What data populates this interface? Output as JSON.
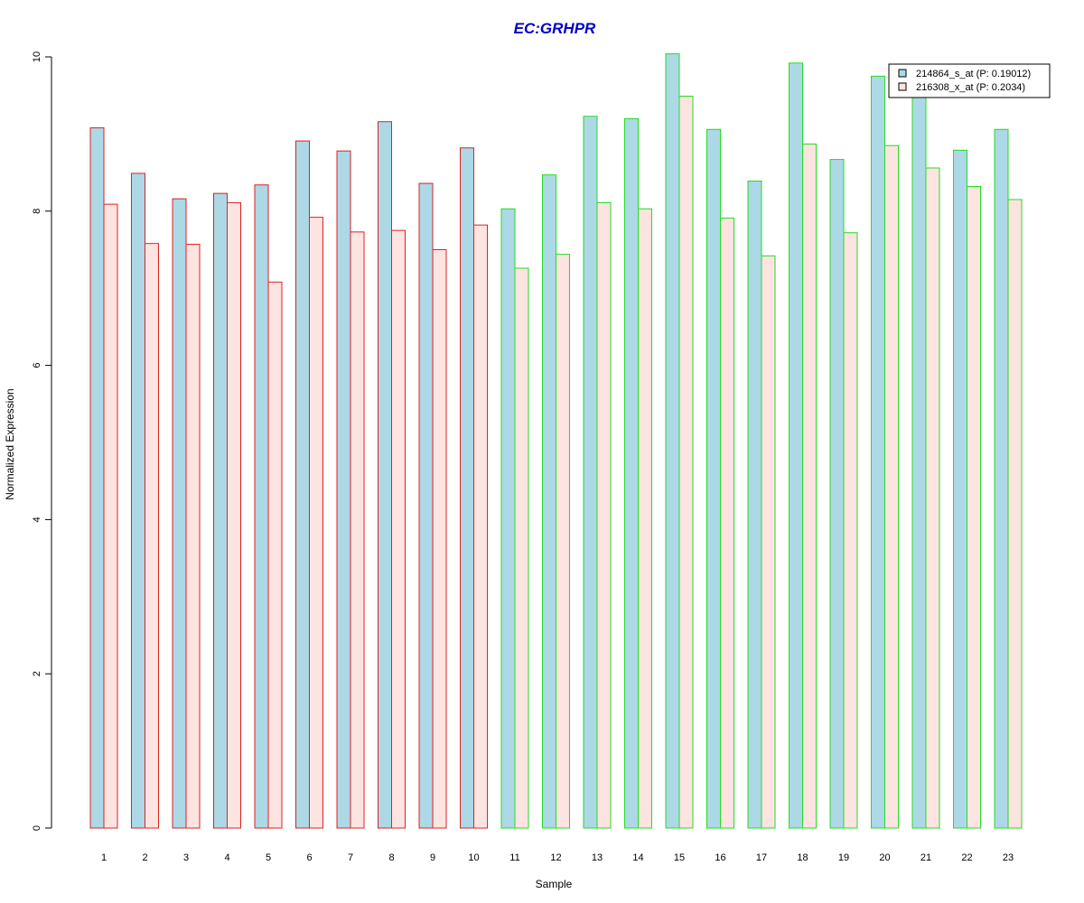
{
  "chart_data": {
    "type": "bar",
    "title": "EC:GRHPR",
    "xlabel": "Sample",
    "ylabel": "Normalized Expression",
    "ylim": [
      0,
      10
    ],
    "yticks": [
      "0",
      "2",
      "4",
      "6",
      "8",
      "10"
    ],
    "categories": [
      "1",
      "2",
      "3",
      "4",
      "5",
      "6",
      "7",
      "8",
      "9",
      "10",
      "11",
      "12",
      "13",
      "14",
      "15",
      "16",
      "17",
      "18",
      "19",
      "20",
      "21",
      "22",
      "23"
    ],
    "series": [
      {
        "name": "214864_s_at (P: 0.19012)",
        "fill": "#add8e6",
        "values": [
          9.08,
          8.49,
          8.16,
          8.23,
          8.34,
          8.91,
          8.78,
          9.16,
          8.36,
          8.82,
          8.03,
          8.47,
          9.23,
          9.2,
          10.04,
          9.06,
          8.39,
          9.92,
          8.67,
          9.75,
          9.5,
          8.79,
          9.06
        ]
      },
      {
        "name": "216308_x_at (P: 0.2034)",
        "fill": "#fde4e0",
        "values": [
          8.09,
          7.58,
          7.57,
          8.11,
          7.08,
          7.92,
          7.73,
          7.75,
          7.5,
          7.82,
          7.26,
          7.44,
          8.11,
          8.03,
          9.49,
          7.91,
          7.42,
          8.87,
          7.72,
          8.85,
          8.56,
          8.32,
          8.15
        ]
      }
    ],
    "groups": [
      {
        "border_color": "#dd2222",
        "count": 10
      },
      {
        "border_color": "#22dd22",
        "count": 13
      }
    ],
    "title_color": "#0000cc",
    "legend_position": "top-right",
    "grid": false
  }
}
